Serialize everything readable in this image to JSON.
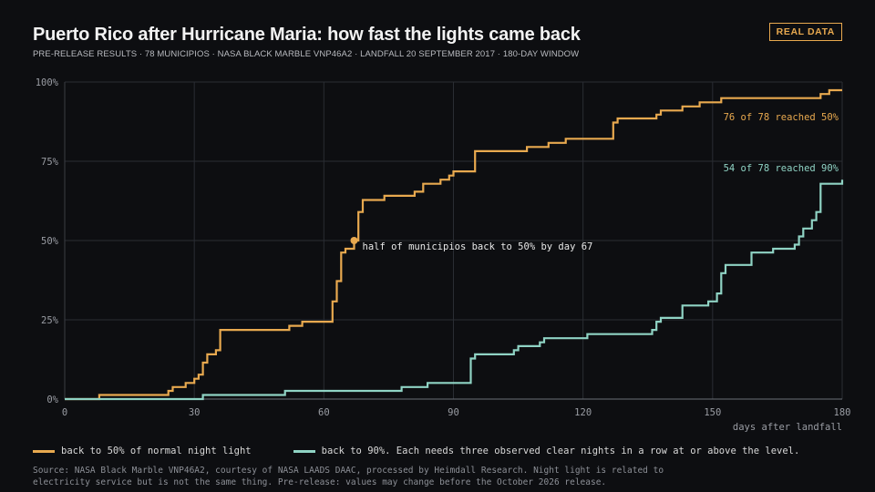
{
  "header": {
    "title": "Puerto Rico after Hurricane Maria: how fast the lights came back",
    "subtitle": "PRE-RELEASE RESULTS · 78 MUNICIPIOS · NASA BLACK MARBLE VNP46A2 · LANDFALL 20 SEPTEMBER 2017 · 180-DAY WINDOW",
    "badge": "REAL DATA"
  },
  "legend": {
    "item_50": "back to 50% of normal night light",
    "item_90": "back to 90%. Each needs three observed clear nights in a row at or above the level."
  },
  "source": "Source: NASA Black Marble VNP46A2, courtesy of NASA LAADS DAAC, processed by Heimdall Research. Night light is related to electricity service but is not the same thing. Pre-release: values may change before the October 2026 release.",
  "colors": {
    "series_50": "#e8a94f",
    "series_90": "#8fd3c4",
    "background": "#0d0e11",
    "grid": "#2a2d33"
  },
  "chart_data": {
    "type": "line",
    "step": "post",
    "xlabel": "days after landfall",
    "ylabel": "",
    "xlim": [
      0,
      180
    ],
    "ylim": [
      0,
      100
    ],
    "xticks": [
      0,
      30,
      60,
      90,
      120,
      150,
      180
    ],
    "yticks": [
      0,
      25,
      50,
      75,
      100
    ],
    "ytick_labels": [
      "0%",
      "25%",
      "50%",
      "75%",
      "100%"
    ],
    "grid": true,
    "series": [
      {
        "name": "back to 50% of normal night light",
        "color": "#e8a94f",
        "points": [
          [
            0,
            0
          ],
          [
            8,
            1.3
          ],
          [
            24,
            2.6
          ],
          [
            25,
            3.8
          ],
          [
            28,
            5.1
          ],
          [
            30,
            6.4
          ],
          [
            31,
            7.7
          ],
          [
            32,
            11.5
          ],
          [
            33,
            14.1
          ],
          [
            35,
            15.4
          ],
          [
            36,
            21.8
          ],
          [
            52,
            23.1
          ],
          [
            55,
            24.4
          ],
          [
            62,
            30.8
          ],
          [
            63,
            37.2
          ],
          [
            64,
            46.2
          ],
          [
            65,
            47.4
          ],
          [
            67,
            50
          ],
          [
            68,
            59
          ],
          [
            69,
            62.8
          ],
          [
            74,
            64.1
          ],
          [
            81,
            65.4
          ],
          [
            83,
            67.9
          ],
          [
            87,
            69.2
          ],
          [
            89,
            70.5
          ],
          [
            90,
            71.8
          ],
          [
            95,
            78.2
          ],
          [
            107,
            79.5
          ],
          [
            112,
            80.8
          ],
          [
            116,
            82.1
          ],
          [
            127,
            87.2
          ],
          [
            128,
            88.5
          ],
          [
            137,
            89.7
          ],
          [
            138,
            91
          ],
          [
            143,
            92.3
          ],
          [
            147,
            93.6
          ],
          [
            152,
            94.9
          ],
          [
            175,
            96.2
          ],
          [
            177,
            97.4
          ],
          [
            180,
            97.4
          ]
        ],
        "end_label": "76 of 78 reached 50%"
      },
      {
        "name": "back to 90%. Each needs three observed clear nights in a row at or above the level.",
        "color": "#8fd3c4",
        "points": [
          [
            0,
            0
          ],
          [
            32,
            1.3
          ],
          [
            51,
            2.6
          ],
          [
            78,
            3.8
          ],
          [
            84,
            5.1
          ],
          [
            94,
            12.8
          ],
          [
            95,
            14.1
          ],
          [
            104,
            15.4
          ],
          [
            105,
            16.7
          ],
          [
            110,
            17.9
          ],
          [
            111,
            19.2
          ],
          [
            121,
            20.5
          ],
          [
            136,
            21.8
          ],
          [
            137,
            24.4
          ],
          [
            138,
            25.6
          ],
          [
            143,
            29.5
          ],
          [
            149,
            30.8
          ],
          [
            151,
            33.3
          ],
          [
            152,
            39.7
          ],
          [
            153,
            42.3
          ],
          [
            159,
            46.2
          ],
          [
            164,
            47.4
          ],
          [
            169,
            48.7
          ],
          [
            170,
            51.3
          ],
          [
            171,
            53.8
          ],
          [
            173,
            56.4
          ],
          [
            174,
            59
          ],
          [
            175,
            67.9
          ],
          [
            180,
            69.2
          ]
        ],
        "end_label": "54 of 78 reached 90%"
      }
    ],
    "annotation": {
      "x": 67,
      "y": 50,
      "text": "half of municipios back to 50% by day 67"
    }
  }
}
